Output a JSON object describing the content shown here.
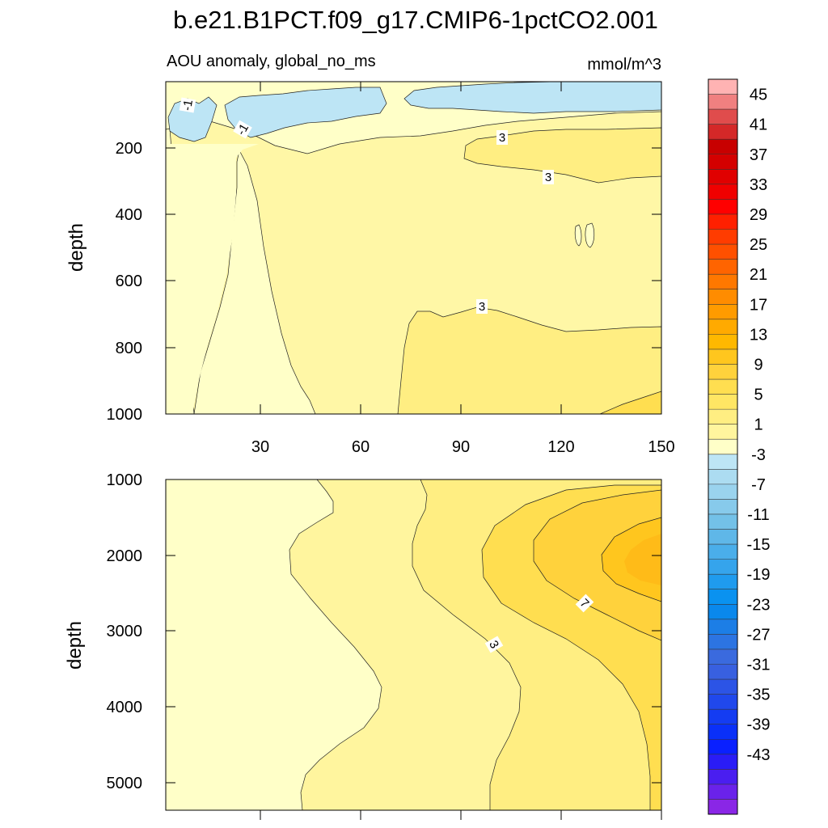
{
  "title": "b.e21.B1PCT.f09_g17.CMIP6-1pctCO2.001",
  "chart_data": [
    {
      "type": "contour",
      "panel": "upper",
      "subtitle": "AOU anomaly, global_no_ms",
      "units": "mmol/m^3",
      "ylabel": "depth",
      "xlabel": "",
      "xlim": [
        0,
        152
      ],
      "ylim": [
        1000,
        0
      ],
      "xticks": [
        "30",
        "60",
        "90",
        "120",
        "150"
      ],
      "yticks": [
        "200",
        "400",
        "600",
        "800",
        "1000"
      ],
      "contour_labels": [
        "-1",
        "-1",
        "3",
        "3",
        "3"
      ]
    },
    {
      "type": "contour",
      "panel": "lower",
      "ylabel": "depth",
      "xlabel": "",
      "xlim": [
        0,
        152
      ],
      "ylim": [
        5350,
        1000
      ],
      "yticks": [
        "1000",
        "2000",
        "3000",
        "4000",
        "5000"
      ],
      "contour_labels": [
        "3",
        "7"
      ]
    }
  ],
  "colorbar": {
    "labels": [
      "45",
      "41",
      "37",
      "33",
      "29",
      "25",
      "21",
      "17",
      "13",
      "9",
      "5",
      "1",
      "-3",
      "-7",
      "-11",
      "-15",
      "-19",
      "-23",
      "-27",
      "-31",
      "-35",
      "-39",
      "-43"
    ],
    "colors": [
      "#ffb3b3",
      "#f08080",
      "#e04c4c",
      "#d42828",
      "#c80000",
      "#d40000",
      "#e00000",
      "#f00000",
      "#ff0000",
      "#ff2000",
      "#ff3c00",
      "#ff5000",
      "#ff6400",
      "#ff7800",
      "#ff8c00",
      "#ff9b00",
      "#ffaa00",
      "#ffb800",
      "#ffc61e",
      "#ffd23c",
      "#ffde50",
      "#ffe664",
      "#ffee82",
      "#fff59e",
      "#ffffc8",
      "#bde5f5",
      "#acdcf1",
      "#9ad3ee",
      "#87caeb",
      "#73c1e8",
      "#5fb7e8",
      "#4aaeea",
      "#35a4ec",
      "#1f9bee",
      "#0a92f0",
      "#0a88ec",
      "#1c7ee6",
      "#2c74e2",
      "#3a6ade",
      "#3860e0",
      "#2c54e6",
      "#2048ec",
      "#143cf2",
      "#0a30f8",
      "#0a20ff",
      "#2a1cf6",
      "#4a1ef0",
      "#6a22ea",
      "#8a26e6"
    ]
  }
}
